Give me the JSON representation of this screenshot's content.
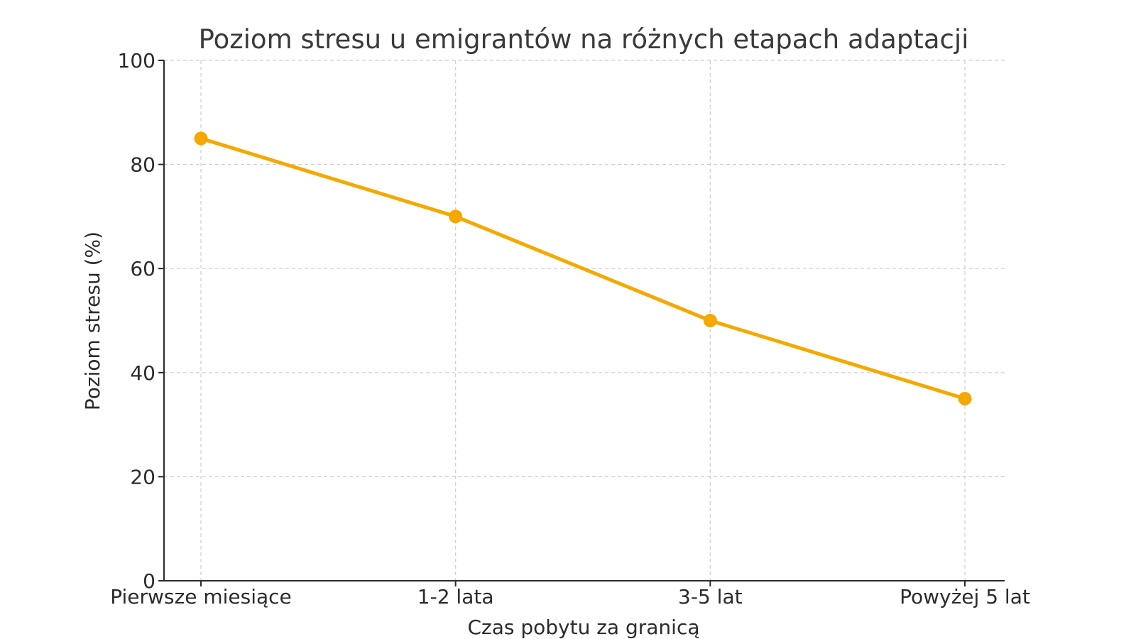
{
  "chart_data": {
    "type": "line",
    "title": "Poziom stresu u emigrantów na różnych etapach adaptacji",
    "xlabel": "Czas pobytu za granicą",
    "ylabel": "Poziom stresu (%)",
    "categories": [
      "Pierwsze miesiące",
      "1-2 lata",
      "3-5 lat",
      "Powyżej 5 lat"
    ],
    "series": [
      {
        "values": [
          85,
          70,
          50,
          35
        ],
        "color": "#f5a800"
      }
    ],
    "ylim": [
      0,
      100
    ],
    "yticks": [
      0,
      20,
      40,
      60,
      80,
      100
    ],
    "grid": true,
    "legend": "none"
  }
}
